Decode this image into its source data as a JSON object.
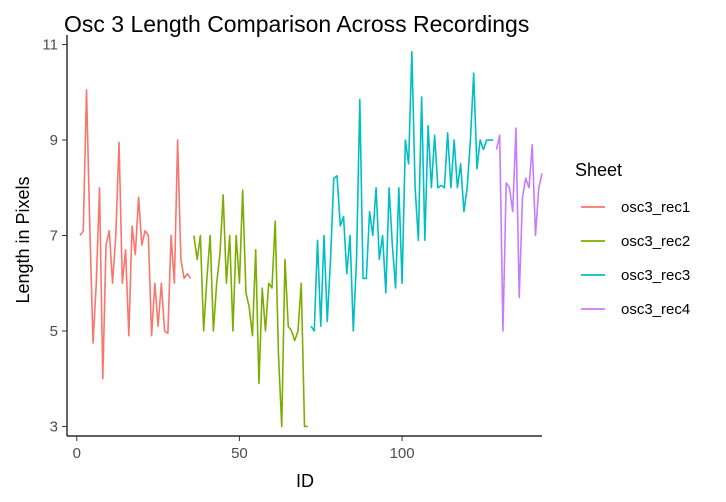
{
  "chart_data": {
    "type": "line",
    "title": "Osc 3 Length Comparison Across Recordings",
    "xlabel": "ID",
    "ylabel": "Length in Pixels",
    "xlim": [
      -3,
      143
    ],
    "ylim": [
      2.8,
      11.2
    ],
    "x_ticks": [
      0,
      50,
      100
    ],
    "y_ticks": [
      3,
      5,
      7,
      9,
      11
    ],
    "grid": false,
    "legend": {
      "title": "Sheet",
      "position": "right"
    },
    "series": [
      {
        "name": "osc3_rec1",
        "color": "#F8766D",
        "x": [
          1,
          2,
          3,
          4,
          5,
          6,
          7,
          8,
          9,
          10,
          11,
          12,
          13,
          14,
          15,
          16,
          17,
          18,
          19,
          20,
          21,
          22,
          23,
          24,
          25,
          26,
          27,
          28,
          29,
          30,
          31,
          32,
          33,
          34,
          35
        ],
        "y": [
          7.0,
          7.1,
          10.05,
          7.2,
          4.75,
          6.0,
          8.0,
          4.0,
          6.8,
          7.1,
          6.0,
          7.0,
          8.95,
          6.0,
          6.7,
          4.9,
          7.2,
          6.6,
          7.8,
          6.8,
          7.1,
          7.0,
          4.9,
          6.0,
          5.1,
          6.0,
          5.0,
          4.95,
          7.0,
          6.0,
          9.0,
          6.5,
          6.1,
          6.2,
          6.1
        ]
      },
      {
        "name": "osc3_rec2",
        "color": "#7CAE00",
        "x": [
          36,
          37,
          38,
          39,
          40,
          41,
          42,
          43,
          44,
          45,
          46,
          47,
          48,
          49,
          50,
          51,
          52,
          53,
          54,
          55,
          56,
          57,
          58,
          59,
          60,
          61,
          62,
          63,
          64,
          65,
          66,
          67,
          68,
          69,
          70,
          71
        ],
        "y": [
          7.0,
          6.5,
          7.0,
          5.0,
          6.1,
          7.0,
          5.0,
          6.0,
          6.6,
          7.85,
          6.0,
          7.0,
          5.0,
          7.0,
          6.0,
          7.95,
          5.8,
          5.5,
          4.9,
          6.7,
          3.9,
          5.9,
          5.0,
          6.0,
          5.9,
          7.3,
          4.5,
          3.0,
          6.5,
          5.1,
          5.0,
          4.8,
          5.0,
          6.0,
          3.0,
          3.0
        ]
      },
      {
        "name": "osc3_rec3",
        "color": "#00BFC4",
        "x": [
          72,
          73,
          74,
          75,
          76,
          77,
          78,
          79,
          80,
          81,
          82,
          83,
          84,
          85,
          86,
          87,
          88,
          89,
          90,
          91,
          92,
          93,
          94,
          95,
          96,
          97,
          98,
          99,
          100,
          101,
          102,
          103,
          104,
          105,
          106,
          107,
          108,
          109,
          110,
          111,
          112,
          113,
          114,
          115,
          116,
          117,
          118,
          119,
          120,
          121,
          122,
          123,
          124,
          125,
          126,
          127,
          128
        ],
        "y": [
          5.1,
          5.0,
          6.9,
          5.1,
          7.0,
          5.2,
          6.5,
          8.2,
          8.25,
          7.2,
          7.4,
          6.2,
          7.0,
          5.0,
          6.5,
          9.85,
          6.1,
          6.1,
          7.5,
          7.0,
          8.0,
          6.5,
          7.0,
          5.8,
          8.0,
          6.8,
          5.9,
          8.0,
          6.0,
          9.0,
          8.5,
          10.85,
          8.0,
          6.9,
          9.9,
          6.9,
          9.3,
          8.0,
          9.1,
          8.0,
          8.05,
          8.0,
          9.15,
          8.0,
          9.0,
          8.0,
          8.5,
          7.5,
          8.0,
          9.0,
          10.4,
          8.4,
          9.0,
          8.8,
          9.0,
          9.0,
          9.0
        ]
      },
      {
        "name": "osc3_rec4",
        "color": "#C77CFF",
        "x": [
          129,
          130,
          131,
          132,
          133,
          134,
          135,
          136,
          137,
          138,
          139,
          140,
          141,
          142,
          143
        ],
        "y": [
          8.8,
          9.1,
          5.0,
          8.1,
          8.0,
          7.5,
          9.25,
          5.7,
          7.8,
          8.2,
          8.0,
          8.9,
          7.0,
          8.0,
          8.3
        ]
      }
    ]
  }
}
